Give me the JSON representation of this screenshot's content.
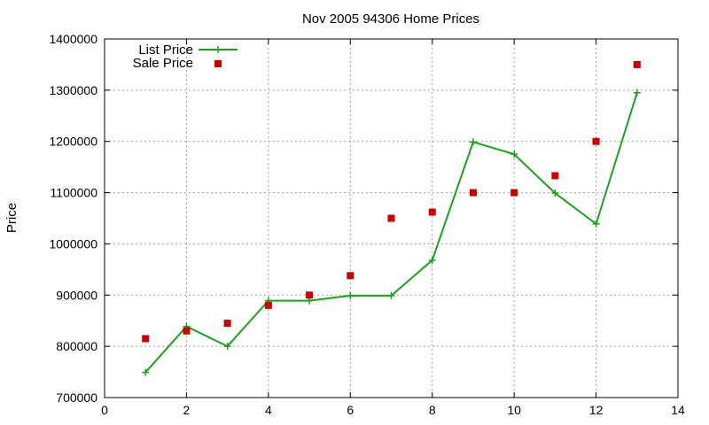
{
  "chart_data": {
    "type": "line",
    "title": "Nov 2005 94306 Home Prices",
    "xlabel": "",
    "ylabel": "Price",
    "xlim": [
      0,
      14
    ],
    "ylim": [
      700000,
      1400000
    ],
    "xticks": [
      0,
      2,
      4,
      6,
      8,
      10,
      12,
      14
    ],
    "yticks": [
      700000,
      800000,
      900000,
      1000000,
      1100000,
      1200000,
      1300000,
      1400000
    ],
    "grid": true,
    "legend_position": "top-left",
    "series": [
      {
        "name": "List Price",
        "style": "line-plus",
        "color": "#1aa21a",
        "x": [
          1,
          2,
          3,
          4,
          5,
          6,
          7,
          8,
          9,
          10,
          11,
          12,
          13
        ],
        "y": [
          749000,
          839000,
          800000,
          889000,
          889000,
          899000,
          899000,
          968000,
          1199000,
          1175000,
          1099000,
          1039000,
          1295000
        ]
      },
      {
        "name": "Sale Price",
        "style": "square",
        "color": "#cc0000",
        "x": [
          1,
          2,
          3,
          4,
          5,
          6,
          7,
          8,
          9,
          10,
          11,
          12,
          13
        ],
        "y": [
          815000,
          830000,
          845000,
          880000,
          900000,
          938000,
          1050000,
          1062000,
          1100000,
          1100000,
          1133000,
          1200000,
          1350000
        ]
      }
    ]
  }
}
